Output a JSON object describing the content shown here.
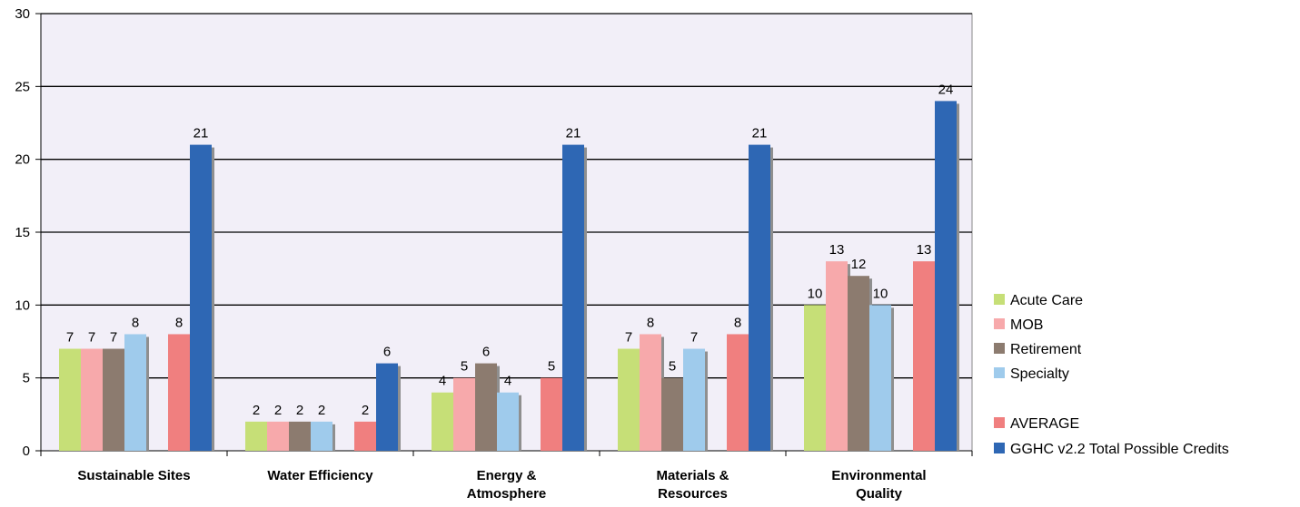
{
  "chart_data": {
    "type": "bar",
    "categories": [
      [
        "Sustainable Sites"
      ],
      [
        "Water Efficiency"
      ],
      [
        "Energy &",
        "Atmosphere"
      ],
      [
        "Materials &",
        "Resources"
      ],
      [
        "Environmental",
        "Quality"
      ]
    ],
    "series": [
      {
        "name": "Acute Care",
        "color": "#c6df77",
        "values": [
          7,
          2,
          4,
          7,
          10
        ]
      },
      {
        "name": "MOB",
        "color": "#f7a9ab",
        "values": [
          7,
          2,
          5,
          8,
          13
        ]
      },
      {
        "name": "Retirement",
        "color": "#8c7b6f",
        "values": [
          7,
          2,
          6,
          5,
          12
        ]
      },
      {
        "name": "Specialty",
        "color": "#9fcbec",
        "values": [
          8,
          2,
          4,
          7,
          10
        ]
      },
      {
        "name": "AVERAGE",
        "color": "#f07f7f",
        "values": [
          8,
          2,
          5,
          8,
          13
        ]
      },
      {
        "name": "GGHC v2.2 Total Possible Credits",
        "color": "#2e67b4",
        "values": [
          21,
          6,
          21,
          21,
          24
        ]
      }
    ],
    "ylim": [
      0,
      30
    ],
    "yticks": [
      0,
      5,
      10,
      15,
      20,
      25,
      30
    ],
    "grid": true,
    "plot_background": "#f2eff8",
    "legend_position": "right"
  }
}
